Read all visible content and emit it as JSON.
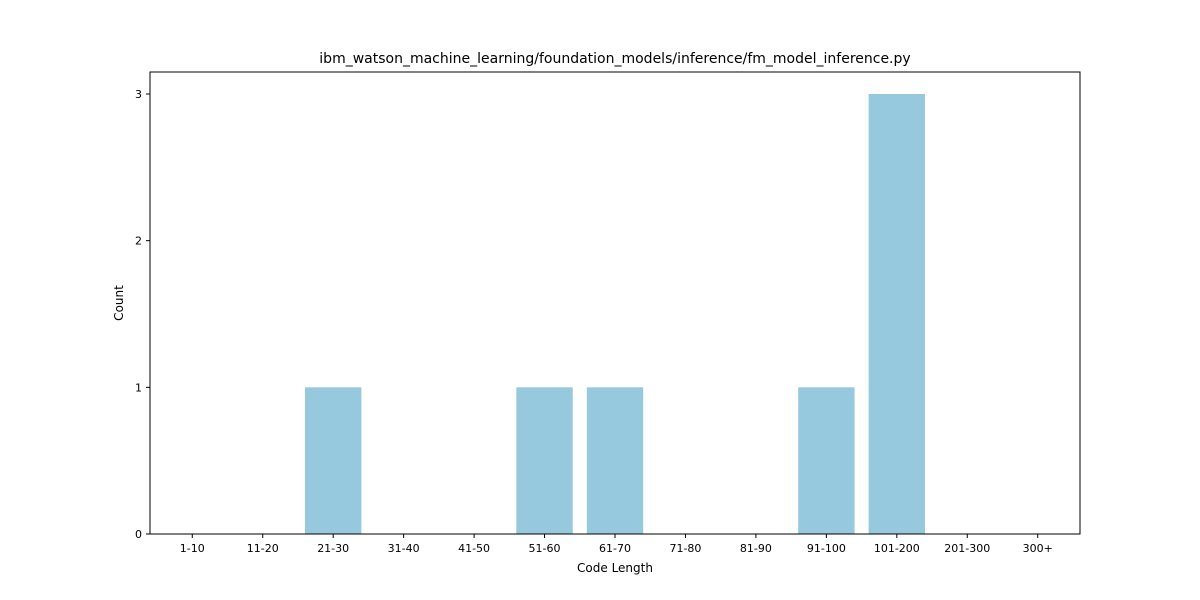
{
  "chart_data": {
    "type": "bar",
    "title": "ibm_watson_machine_learning/foundation_models/inference/fm_model_inference.py",
    "xlabel": "Code Length",
    "ylabel": "Count",
    "categories": [
      "1-10",
      "11-20",
      "21-30",
      "31-40",
      "41-50",
      "51-60",
      "61-70",
      "71-80",
      "81-90",
      "91-100",
      "101-200",
      "201-300",
      "300+"
    ],
    "values": [
      0,
      0,
      1,
      0,
      0,
      1,
      1,
      0,
      0,
      1,
      3,
      0,
      0
    ],
    "yticks": [
      "0",
      "1",
      "2",
      "3"
    ],
    "ylim": [
      0,
      3.15
    ],
    "bar_color": "#96c9dd",
    "grid": false,
    "legend": "none"
  }
}
